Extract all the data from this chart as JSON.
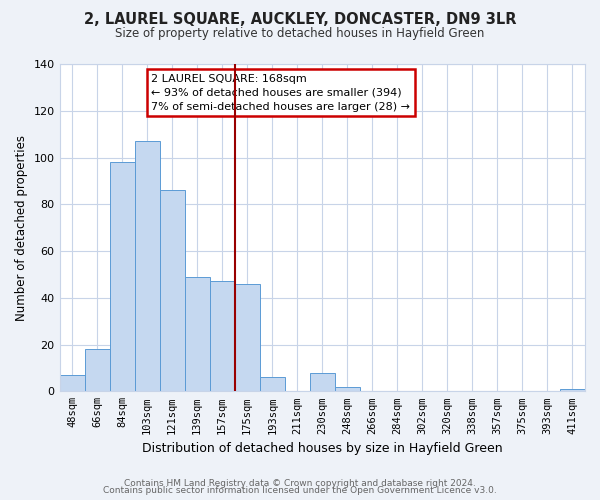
{
  "title": "2, LAUREL SQUARE, AUCKLEY, DONCASTER, DN9 3LR",
  "subtitle": "Size of property relative to detached houses in Hayfield Green",
  "xlabel": "Distribution of detached houses by size in Hayfield Green",
  "ylabel": "Number of detached properties",
  "bar_labels": [
    "48sqm",
    "66sqm",
    "84sqm",
    "103sqm",
    "121sqm",
    "139sqm",
    "157sqm",
    "175sqm",
    "193sqm",
    "211sqm",
    "230sqm",
    "248sqm",
    "266sqm",
    "284sqm",
    "302sqm",
    "320sqm",
    "338sqm",
    "357sqm",
    "375sqm",
    "393sqm",
    "411sqm"
  ],
  "bar_values": [
    7,
    18,
    98,
    107,
    86,
    49,
    47,
    46,
    6,
    0,
    8,
    2,
    0,
    0,
    0,
    0,
    0,
    0,
    0,
    0,
    1
  ],
  "bar_color": "#c5d8f0",
  "bar_edge_color": "#5b9bd5",
  "marker_line_color": "#990000",
  "annotation_text_line1": "2 LAUREL SQUARE: 168sqm",
  "annotation_text_line2": "← 93% of detached houses are smaller (394)",
  "annotation_text_line3": "7% of semi-detached houses are larger (28) →",
  "annotation_box_edge": "#cc0000",
  "ylim": [
    0,
    140
  ],
  "yticks": [
    0,
    20,
    40,
    60,
    80,
    100,
    120,
    140
  ],
  "footer1": "Contains HM Land Registry data © Crown copyright and database right 2024.",
  "footer2": "Contains public sector information licensed under the Open Government Licence v3.0.",
  "bg_color": "#eef2f8",
  "plot_bg_color": "#ffffff",
  "grid_color": "#c8d4e8"
}
